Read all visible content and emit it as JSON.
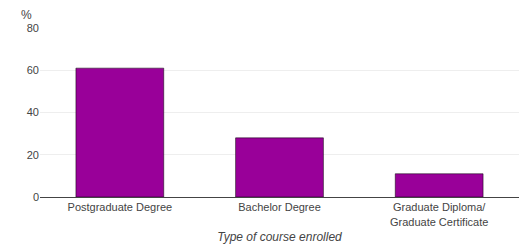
{
  "chart_data": {
    "type": "bar",
    "categories": [
      "Postgraduate Degree",
      "Bachelor Degree",
      "Graduate Diploma/\nGraduate Certificate"
    ],
    "values": [
      61.0,
      28.0,
      11.0
    ],
    "color": "#990099",
    "xlabel": "Type of course enrolled",
    "ylabel": "%",
    "ylim": [
      0,
      80
    ],
    "yticks": [
      0,
      20,
      40,
      60,
      80
    ],
    "grid": true
  }
}
